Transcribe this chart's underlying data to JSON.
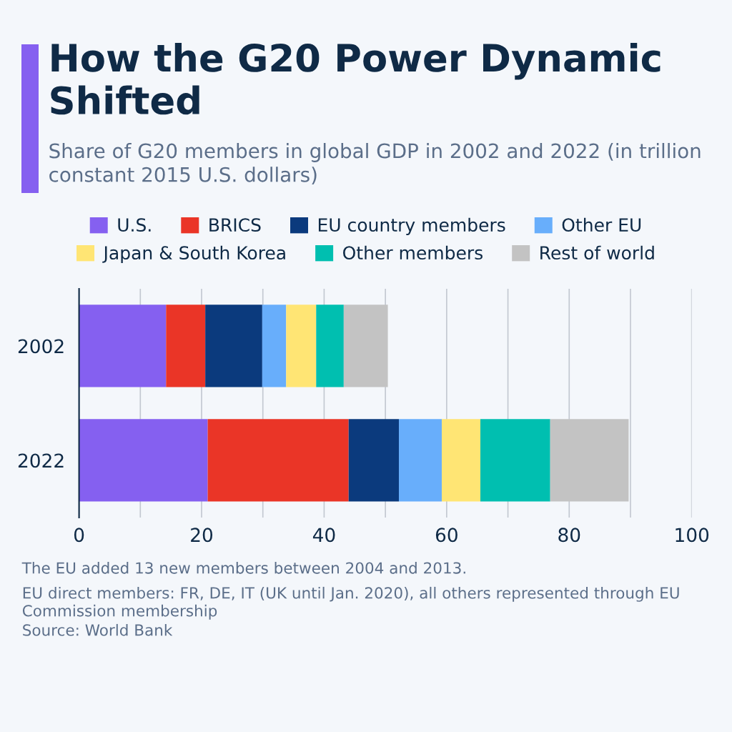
{
  "chart_data": {
    "type": "bar",
    "orientation": "horizontal",
    "stacked": true,
    "title": "How the G20 Power Dynamic Shifted",
    "subtitle": "Share of G20 members in global GDP in 2002 and 2022 (in trillion constant 2015 U.S. dollars)",
    "categories": [
      "2002",
      "2022"
    ],
    "series": [
      {
        "name": "U.S.",
        "color": "#8560f0",
        "values": [
          14.2,
          21.0
        ]
      },
      {
        "name": "BRICS",
        "color": "#ea3527",
        "values": [
          6.4,
          23.0
        ]
      },
      {
        "name": "EU country members",
        "color": "#0b3a7d",
        "values": [
          9.3,
          8.2
        ]
      },
      {
        "name": "Other EU",
        "color": "#68aefb",
        "values": [
          3.9,
          7.0
        ]
      },
      {
        "name": "Japan & South Korea",
        "color": "#ffe574",
        "values": [
          4.9,
          6.3
        ]
      },
      {
        "name": "Other members",
        "color": "#00bfb0",
        "values": [
          4.5,
          11.4
        ]
      },
      {
        "name": "Rest of world",
        "color": "#c3c3c3",
        "values": [
          7.2,
          12.8
        ]
      }
    ],
    "xlim": [
      0,
      100
    ],
    "xticks": [
      0,
      {
        "value": 10,
        "label": null
      },
      20,
      {
        "value": 30,
        "label": null
      },
      40,
      {
        "value": 50,
        "label": null
      },
      60,
      {
        "value": 70,
        "label": null
      },
      80,
      {
        "value": 90,
        "label": null
      },
      100
    ],
    "grid": "x",
    "legend": "top",
    "annotations": [
      "The EU added 13 new members between 2004 and 2013.",
      "EU direct members: FR, DE, IT (UK until Jan. 2020), all others represented through EU Commission membership",
      "Source: World Bank"
    ]
  }
}
